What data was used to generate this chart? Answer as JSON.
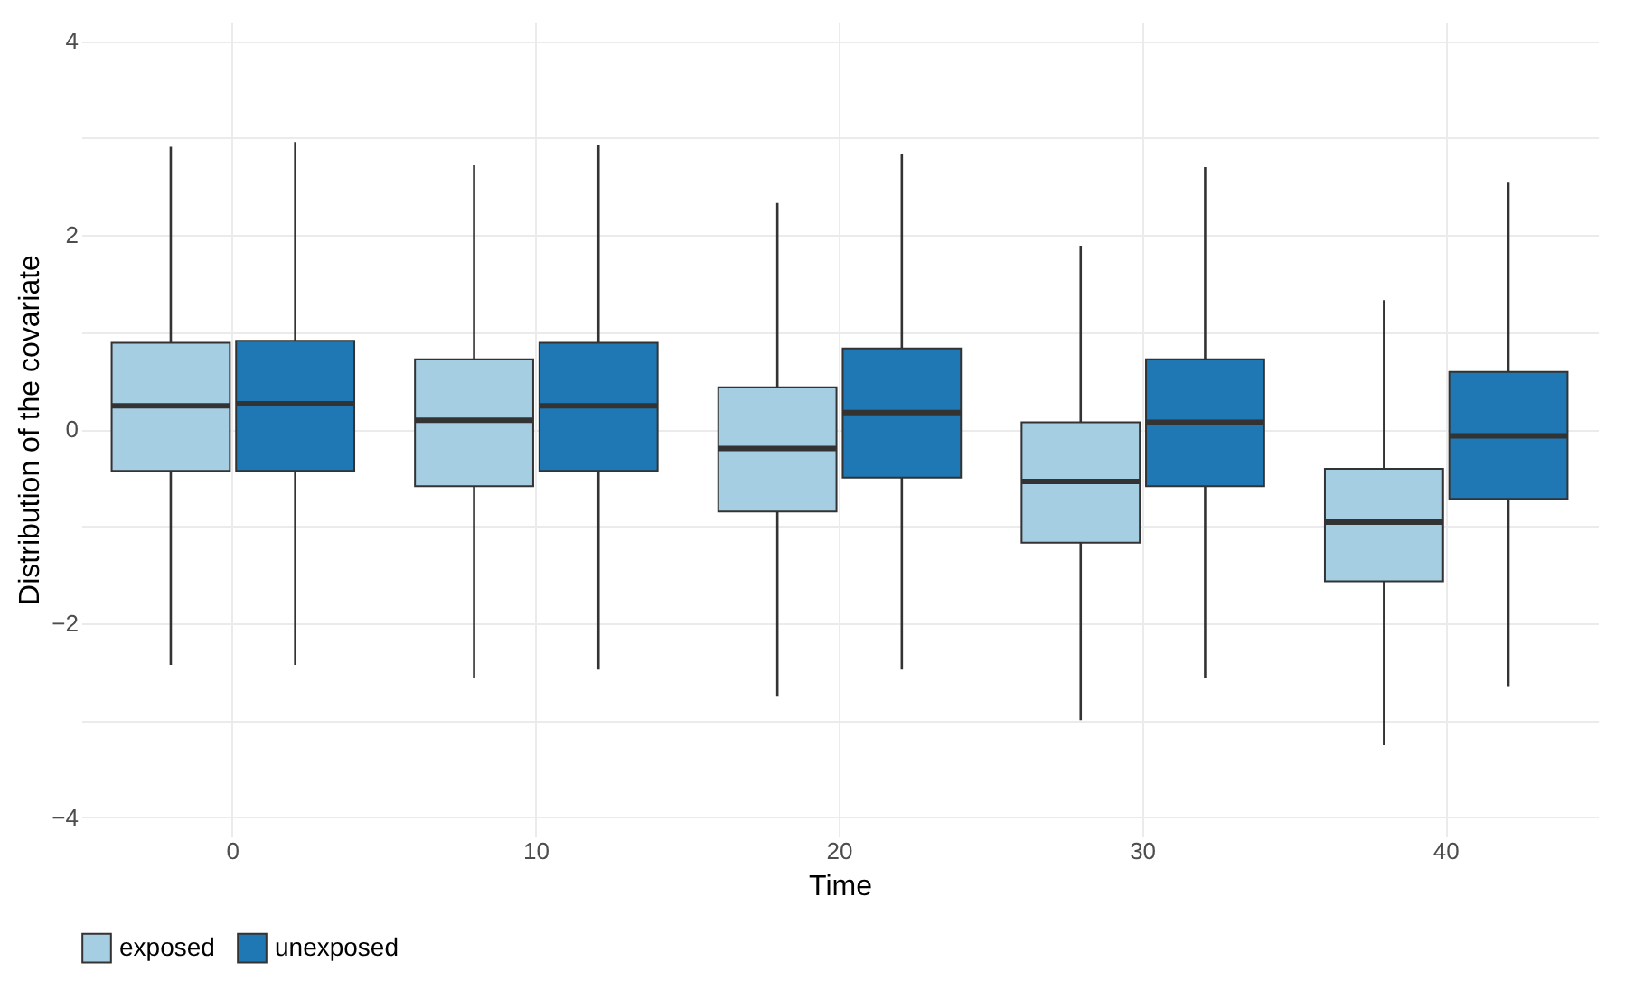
{
  "chart_data": {
    "type": "box",
    "xlabel": "Time",
    "ylabel": "Distribution of the covariate",
    "categories": [
      "0",
      "10",
      "20",
      "30",
      "40"
    ],
    "series": [
      {
        "name": "exposed",
        "color": "#a6cee3",
        "boxes": [
          {
            "low": -2.43,
            "q1": -0.43,
            "median": 0.24,
            "q3": 0.89,
            "high": 2.91
          },
          {
            "low": -2.57,
            "q1": -0.59,
            "median": 0.09,
            "q3": 0.72,
            "high": 2.72
          },
          {
            "low": -2.76,
            "q1": -0.85,
            "median": -0.2,
            "q3": 0.43,
            "high": 2.33
          },
          {
            "low": -3.0,
            "q1": -1.17,
            "median": -0.54,
            "q3": 0.07,
            "high": 1.89
          },
          {
            "low": -3.26,
            "q1": -1.57,
            "median": -0.96,
            "q3": -0.41,
            "high": 1.33
          }
        ]
      },
      {
        "name": "unexposed",
        "color": "#1f78b4",
        "boxes": [
          {
            "low": -2.43,
            "q1": -0.43,
            "median": 0.26,
            "q3": 0.91,
            "high": 2.96
          },
          {
            "low": -2.48,
            "q1": -0.43,
            "median": 0.24,
            "q3": 0.89,
            "high": 2.93
          },
          {
            "low": -2.48,
            "q1": -0.5,
            "median": 0.17,
            "q3": 0.83,
            "high": 2.83
          },
          {
            "low": -2.57,
            "q1": -0.59,
            "median": 0.07,
            "q3": 0.72,
            "high": 2.7
          },
          {
            "low": -2.65,
            "q1": -0.72,
            "median": -0.07,
            "q3": 0.59,
            "high": 2.54
          }
        ]
      }
    ],
    "ylim": [
      -4.2,
      4.2
    ],
    "yticks": [
      -4,
      {
        "value": -3,
        "label": null
      },
      -2,
      {
        "value": -1,
        "label": null
      },
      0,
      {
        "value": 1,
        "label": null
      },
      2,
      {
        "value": 3,
        "label": null
      },
      4
    ],
    "grid": true,
    "legend": "bottom"
  }
}
